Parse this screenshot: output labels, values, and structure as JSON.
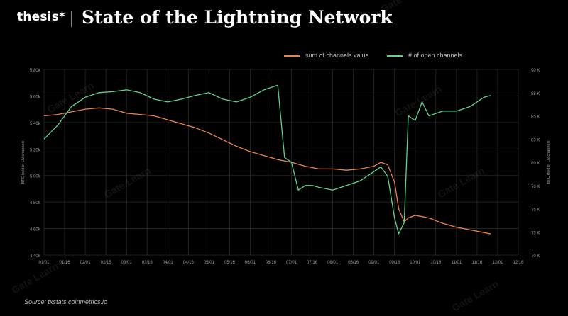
{
  "header": {
    "logo": "thesis*",
    "title": "State of the Lightning Network"
  },
  "legend": {
    "items": [
      {
        "label": "sum of channels value",
        "color": "#e8834c"
      },
      {
        "label": "# of open channels",
        "color": "#5fd28c"
      }
    ]
  },
  "source": "Source: txstats.coinmetrics.io",
  "watermark": "Gate Learn",
  "chart_data": {
    "type": "line",
    "ylabel_left": "BTC held in LN channels",
    "ylabel_right": "BTC held in LN channels",
    "x_ticks": [
      "01/01",
      "01/16",
      "02/01",
      "02/15",
      "03/01",
      "03/16",
      "04/01",
      "04/16",
      "05/01",
      "05/16",
      "06/01",
      "06/16",
      "07/01",
      "07/16",
      "08/01",
      "08/16",
      "09/01",
      "09/16",
      "10/01",
      "10/16",
      "11/01",
      "11/16",
      "12/01",
      "12/16"
    ],
    "y_left_ticks": [
      "5.80k",
      "5.60k",
      "5.40k",
      "5.20k",
      "5.00k",
      "4.80k",
      "4.60k",
      "4.40k"
    ],
    "y_right_ticks": [
      "90 K",
      "88 K",
      "85 K",
      "83 K",
      "80 K",
      "78 K",
      "75 K",
      "73 K",
      "70 K"
    ],
    "y_left_range": [
      4.4,
      5.8
    ],
    "y_right_range": [
      70,
      90
    ],
    "grid": true,
    "series": [
      {
        "name": "sum of channels value",
        "axis": "left",
        "color": "#e8834c",
        "x": [
          0,
          10,
          20,
          30,
          40,
          50,
          60,
          70,
          80,
          90,
          100,
          110,
          120,
          130,
          140,
          150,
          160,
          170,
          180,
          190,
          200,
          210,
          220,
          230,
          240,
          245,
          250,
          255,
          258,
          262,
          265,
          270,
          275,
          280,
          290,
          300,
          310,
          320,
          325
        ],
        "values": [
          5.45,
          5.46,
          5.48,
          5.5,
          5.51,
          5.5,
          5.47,
          5.46,
          5.45,
          5.42,
          5.39,
          5.36,
          5.32,
          5.27,
          5.22,
          5.18,
          5.15,
          5.12,
          5.1,
          5.07,
          5.05,
          5.05,
          5.04,
          5.05,
          5.07,
          5.1,
          5.08,
          4.95,
          4.75,
          4.65,
          4.68,
          4.7,
          4.69,
          4.68,
          4.64,
          4.61,
          4.59,
          4.57,
          4.56
        ]
      },
      {
        "name": "# of open channels",
        "axis": "right",
        "color": "#5fd28c",
        "x": [
          0,
          10,
          20,
          30,
          40,
          50,
          60,
          70,
          80,
          90,
          100,
          110,
          120,
          130,
          140,
          150,
          160,
          170,
          175,
          180,
          185,
          190,
          195,
          200,
          210,
          220,
          230,
          240,
          245,
          250,
          255,
          258,
          262,
          265,
          270,
          275,
          280,
          290,
          300,
          310,
          320,
          325
        ],
        "values": [
          82.5,
          84,
          86,
          87,
          87.5,
          87.6,
          87.8,
          87.5,
          86.8,
          86.5,
          86.8,
          87.2,
          87.5,
          86.8,
          86.5,
          87,
          87.8,
          88.3,
          80.5,
          80,
          77,
          77.5,
          77.5,
          77.3,
          77,
          77.5,
          78,
          79,
          79.5,
          78.5,
          74,
          72.3,
          73.5,
          85,
          84.5,
          86.5,
          85,
          85.5,
          85.5,
          86,
          87,
          87.2
        ]
      }
    ]
  }
}
